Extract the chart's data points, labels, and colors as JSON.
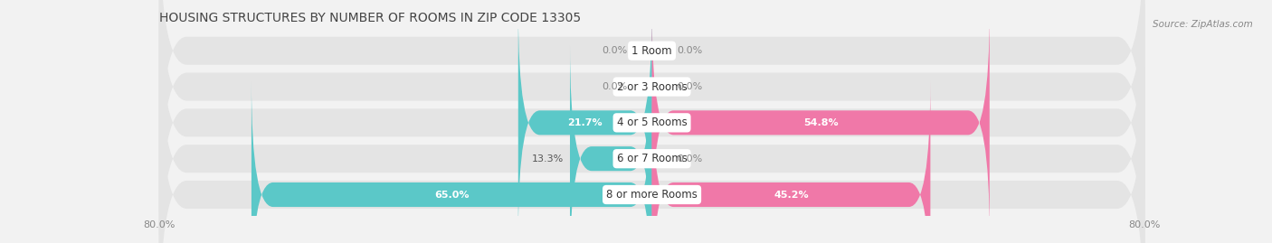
{
  "title": "HOUSING STRUCTURES BY NUMBER OF ROOMS IN ZIP CODE 13305",
  "source": "Source: ZipAtlas.com",
  "categories": [
    "8 or more Rooms",
    "6 or 7 Rooms",
    "4 or 5 Rooms",
    "2 or 3 Rooms",
    "1 Room"
  ],
  "owner_values": [
    65.0,
    13.3,
    21.7,
    0.0,
    0.0
  ],
  "renter_values": [
    45.2,
    0.0,
    54.8,
    0.0,
    0.0
  ],
  "owner_color": "#5bc8c8",
  "renter_color": "#f078a8",
  "background_color": "#f2f2f2",
  "bar_bg_color": "#e4e4e4",
  "label_bg_color": "#ffffff",
  "xlim_left": -80.0,
  "xlim_right": 80.0,
  "title_fontsize": 10,
  "source_fontsize": 7.5,
  "value_fontsize": 8,
  "category_fontsize": 8.5,
  "legend_fontsize": 8.5,
  "tick_fontsize": 8,
  "bar_height": 0.68,
  "fig_width": 14.06,
  "fig_height": 2.69,
  "dpi": 100
}
